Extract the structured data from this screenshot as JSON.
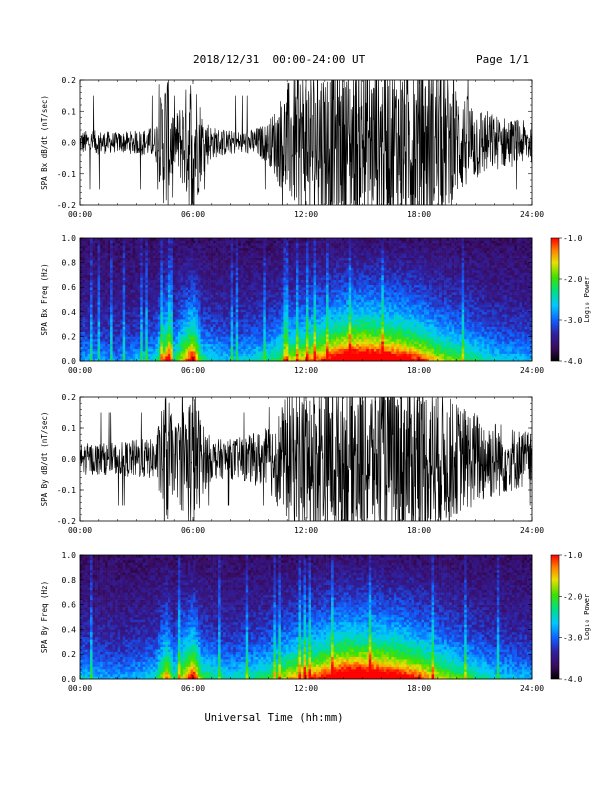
{
  "header": {
    "title": "2018/12/31  00:00-24:00 UT",
    "page": "Page 1/1"
  },
  "xlabel": "Universal Time (hh:mm)",
  "colorbar": {
    "label": "Log₁₀ Power",
    "ticks": [
      "-1.0",
      "-2.0",
      "-3.0",
      "-4.0"
    ]
  },
  "chart_data": [
    {
      "type": "line",
      "ylabel": "SPA Bx dB/dt (nT/sec)",
      "xlim": [
        0,
        24
      ],
      "ylim": [
        -0.2,
        0.2
      ],
      "xticks": [
        "00:00",
        "06:00",
        "12:00",
        "18:00",
        "24:00"
      ],
      "yticks": [
        "0.2",
        "0.1",
        "0.0",
        "-0.1",
        "-0.2"
      ],
      "envelope": {
        "x_hours": [
          0,
          1,
          2,
          3,
          4,
          4.6,
          5,
          5.5,
          6,
          6.5,
          7,
          8,
          9,
          10,
          10.5,
          11,
          12,
          13,
          14,
          15,
          16,
          17,
          18,
          19,
          20,
          21,
          22,
          23,
          24
        ],
        "amplitude": [
          0.03,
          0.03,
          0.025,
          0.03,
          0.04,
          0.2,
          0.06,
          0.12,
          0.2,
          0.08,
          0.04,
          0.03,
          0.03,
          0.05,
          0.1,
          0.15,
          0.2,
          0.2,
          0.2,
          0.2,
          0.2,
          0.2,
          0.2,
          0.2,
          0.14,
          0.1,
          0.07,
          0.06,
          0.05
        ]
      }
    },
    {
      "type": "heatmap",
      "ylabel": "SPA Bx Freq (Hz)",
      "xlim": [
        0,
        24
      ],
      "ylim": [
        0,
        1.0
      ],
      "xticks": [
        "00:00",
        "06:00",
        "12:00",
        "18:00",
        "24:00"
      ],
      "yticks": [
        "1.0",
        "0.8",
        "0.6",
        "0.4",
        "0.2",
        "0.0"
      ],
      "zlim": [
        -4.0,
        -1.0
      ],
      "activity_profile": {
        "x_hours": [
          0,
          2,
          4,
          4.6,
          5,
          6,
          6.5,
          8,
          10,
          11,
          12,
          13,
          14,
          15,
          16,
          17,
          18,
          19,
          20,
          22,
          24
        ],
        "intensity": [
          0.25,
          0.2,
          0.3,
          0.7,
          0.35,
          0.8,
          0.35,
          0.25,
          0.35,
          0.5,
          0.6,
          0.7,
          0.85,
          0.9,
          0.85,
          0.8,
          0.7,
          0.55,
          0.45,
          0.3,
          0.25
        ]
      }
    },
    {
      "type": "line",
      "ylabel": "SPA By dB/dt (nT/sec)",
      "xlim": [
        0,
        24
      ],
      "ylim": [
        -0.2,
        0.2
      ],
      "xticks": [
        "00:00",
        "06:00",
        "12:00",
        "18:00",
        "24:00"
      ],
      "yticks": [
        "0.2",
        "0.1",
        "0.0",
        "-0.1",
        "-0.2"
      ],
      "envelope": {
        "x_hours": [
          0,
          1,
          2,
          3,
          4,
          4.6,
          5,
          5.5,
          6,
          6.5,
          7,
          8,
          9,
          10,
          10.5,
          11,
          12,
          13,
          14,
          15,
          16,
          17,
          18,
          19,
          20,
          21,
          22,
          23,
          24
        ],
        "amplitude": [
          0.04,
          0.04,
          0.04,
          0.05,
          0.05,
          0.18,
          0.08,
          0.14,
          0.2,
          0.09,
          0.05,
          0.05,
          0.06,
          0.08,
          0.12,
          0.16,
          0.2,
          0.2,
          0.2,
          0.2,
          0.2,
          0.2,
          0.2,
          0.18,
          0.14,
          0.12,
          0.1,
          0.08,
          0.07
        ]
      }
    },
    {
      "type": "heatmap",
      "ylabel": "SPA By Freq (Hz)",
      "xlim": [
        0,
        24
      ],
      "ylim": [
        0,
        1.0
      ],
      "xticks": [
        "00:00",
        "06:00",
        "12:00",
        "18:00",
        "24:00"
      ],
      "yticks": [
        "1.0",
        "0.8",
        "0.6",
        "0.4",
        "0.2",
        "0.0"
      ],
      "zlim": [
        -4.0,
        -1.0
      ],
      "activity_profile": {
        "x_hours": [
          0,
          2,
          4,
          4.6,
          5,
          6,
          6.5,
          8,
          10,
          11,
          12,
          13,
          14,
          15,
          16,
          17,
          18,
          19,
          20,
          22,
          24
        ],
        "intensity": [
          0.28,
          0.22,
          0.3,
          0.65,
          0.35,
          0.8,
          0.4,
          0.3,
          0.4,
          0.55,
          0.65,
          0.75,
          0.9,
          0.9,
          0.85,
          0.8,
          0.7,
          0.55,
          0.45,
          0.3,
          0.25
        ]
      }
    }
  ]
}
